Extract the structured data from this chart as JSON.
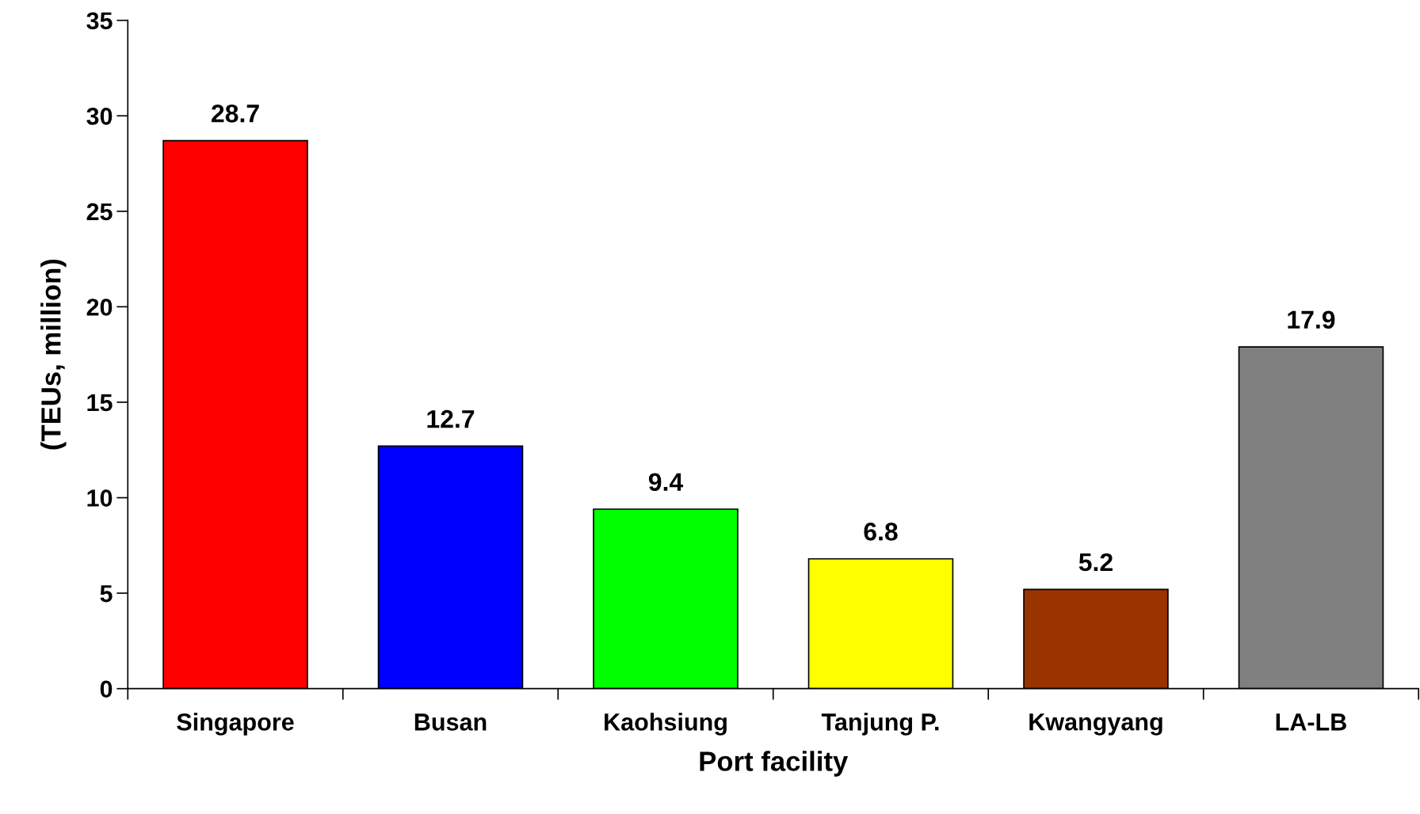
{
  "chart_data": {
    "type": "bar",
    "xlabel": "Port facility",
    "ylabel": "(TEUs, million)",
    "categories": [
      "Singapore",
      "Busan",
      "Kaohsiung",
      "Tanjung P.",
      "Kwangyang",
      "LA-LB"
    ],
    "values": [
      28.7,
      12.7,
      9.4,
      6.8,
      5.2,
      17.9
    ],
    "colors": [
      "#ff0000",
      "#0000ff",
      "#00ff00",
      "#ffff00",
      "#993300",
      "#808080"
    ],
    "ylim": [
      0,
      35
    ],
    "yticks": [
      0,
      5,
      10,
      15,
      20,
      25,
      30,
      35
    ],
    "grid": false,
    "legend": false,
    "data_labels": true
  }
}
